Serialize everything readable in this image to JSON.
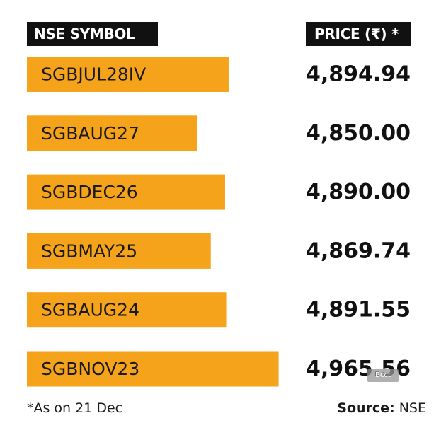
{
  "header": {
    "symbol_label": "NSE SYMBOL",
    "price_label": "PRICE (₹) *"
  },
  "chart_data": {
    "type": "bar",
    "orientation": "horizontal",
    "categories": [
      "SGBJUL28IV",
      "SGBAUG27",
      "SGBDEC26",
      "SGBMAY25",
      "SGBAUG24",
      "SGBNOV23"
    ],
    "values": [
      4894.94,
      4850.0,
      4890.0,
      4869.74,
      4891.55,
      4965.56
    ],
    "value_labels": [
      "4,894.94",
      "4,850.00",
      "4,890.00",
      "4,869.74",
      "4,891.55",
      "4,965.56"
    ],
    "xlim": [
      4610,
      4990
    ],
    "bar_color": "#F5A31A",
    "axis": "none",
    "grid": false,
    "legend": "none"
  },
  "footer": {
    "note": "*As on 21 Dec",
    "source_label": "Source:",
    "source_value": "NSE"
  },
  "watermark": "Bcct",
  "colors": {
    "bar": "#F5A31A",
    "header_bg": "#111111",
    "header_text": "#FFFFFF",
    "text": "#1A1A1A"
  }
}
